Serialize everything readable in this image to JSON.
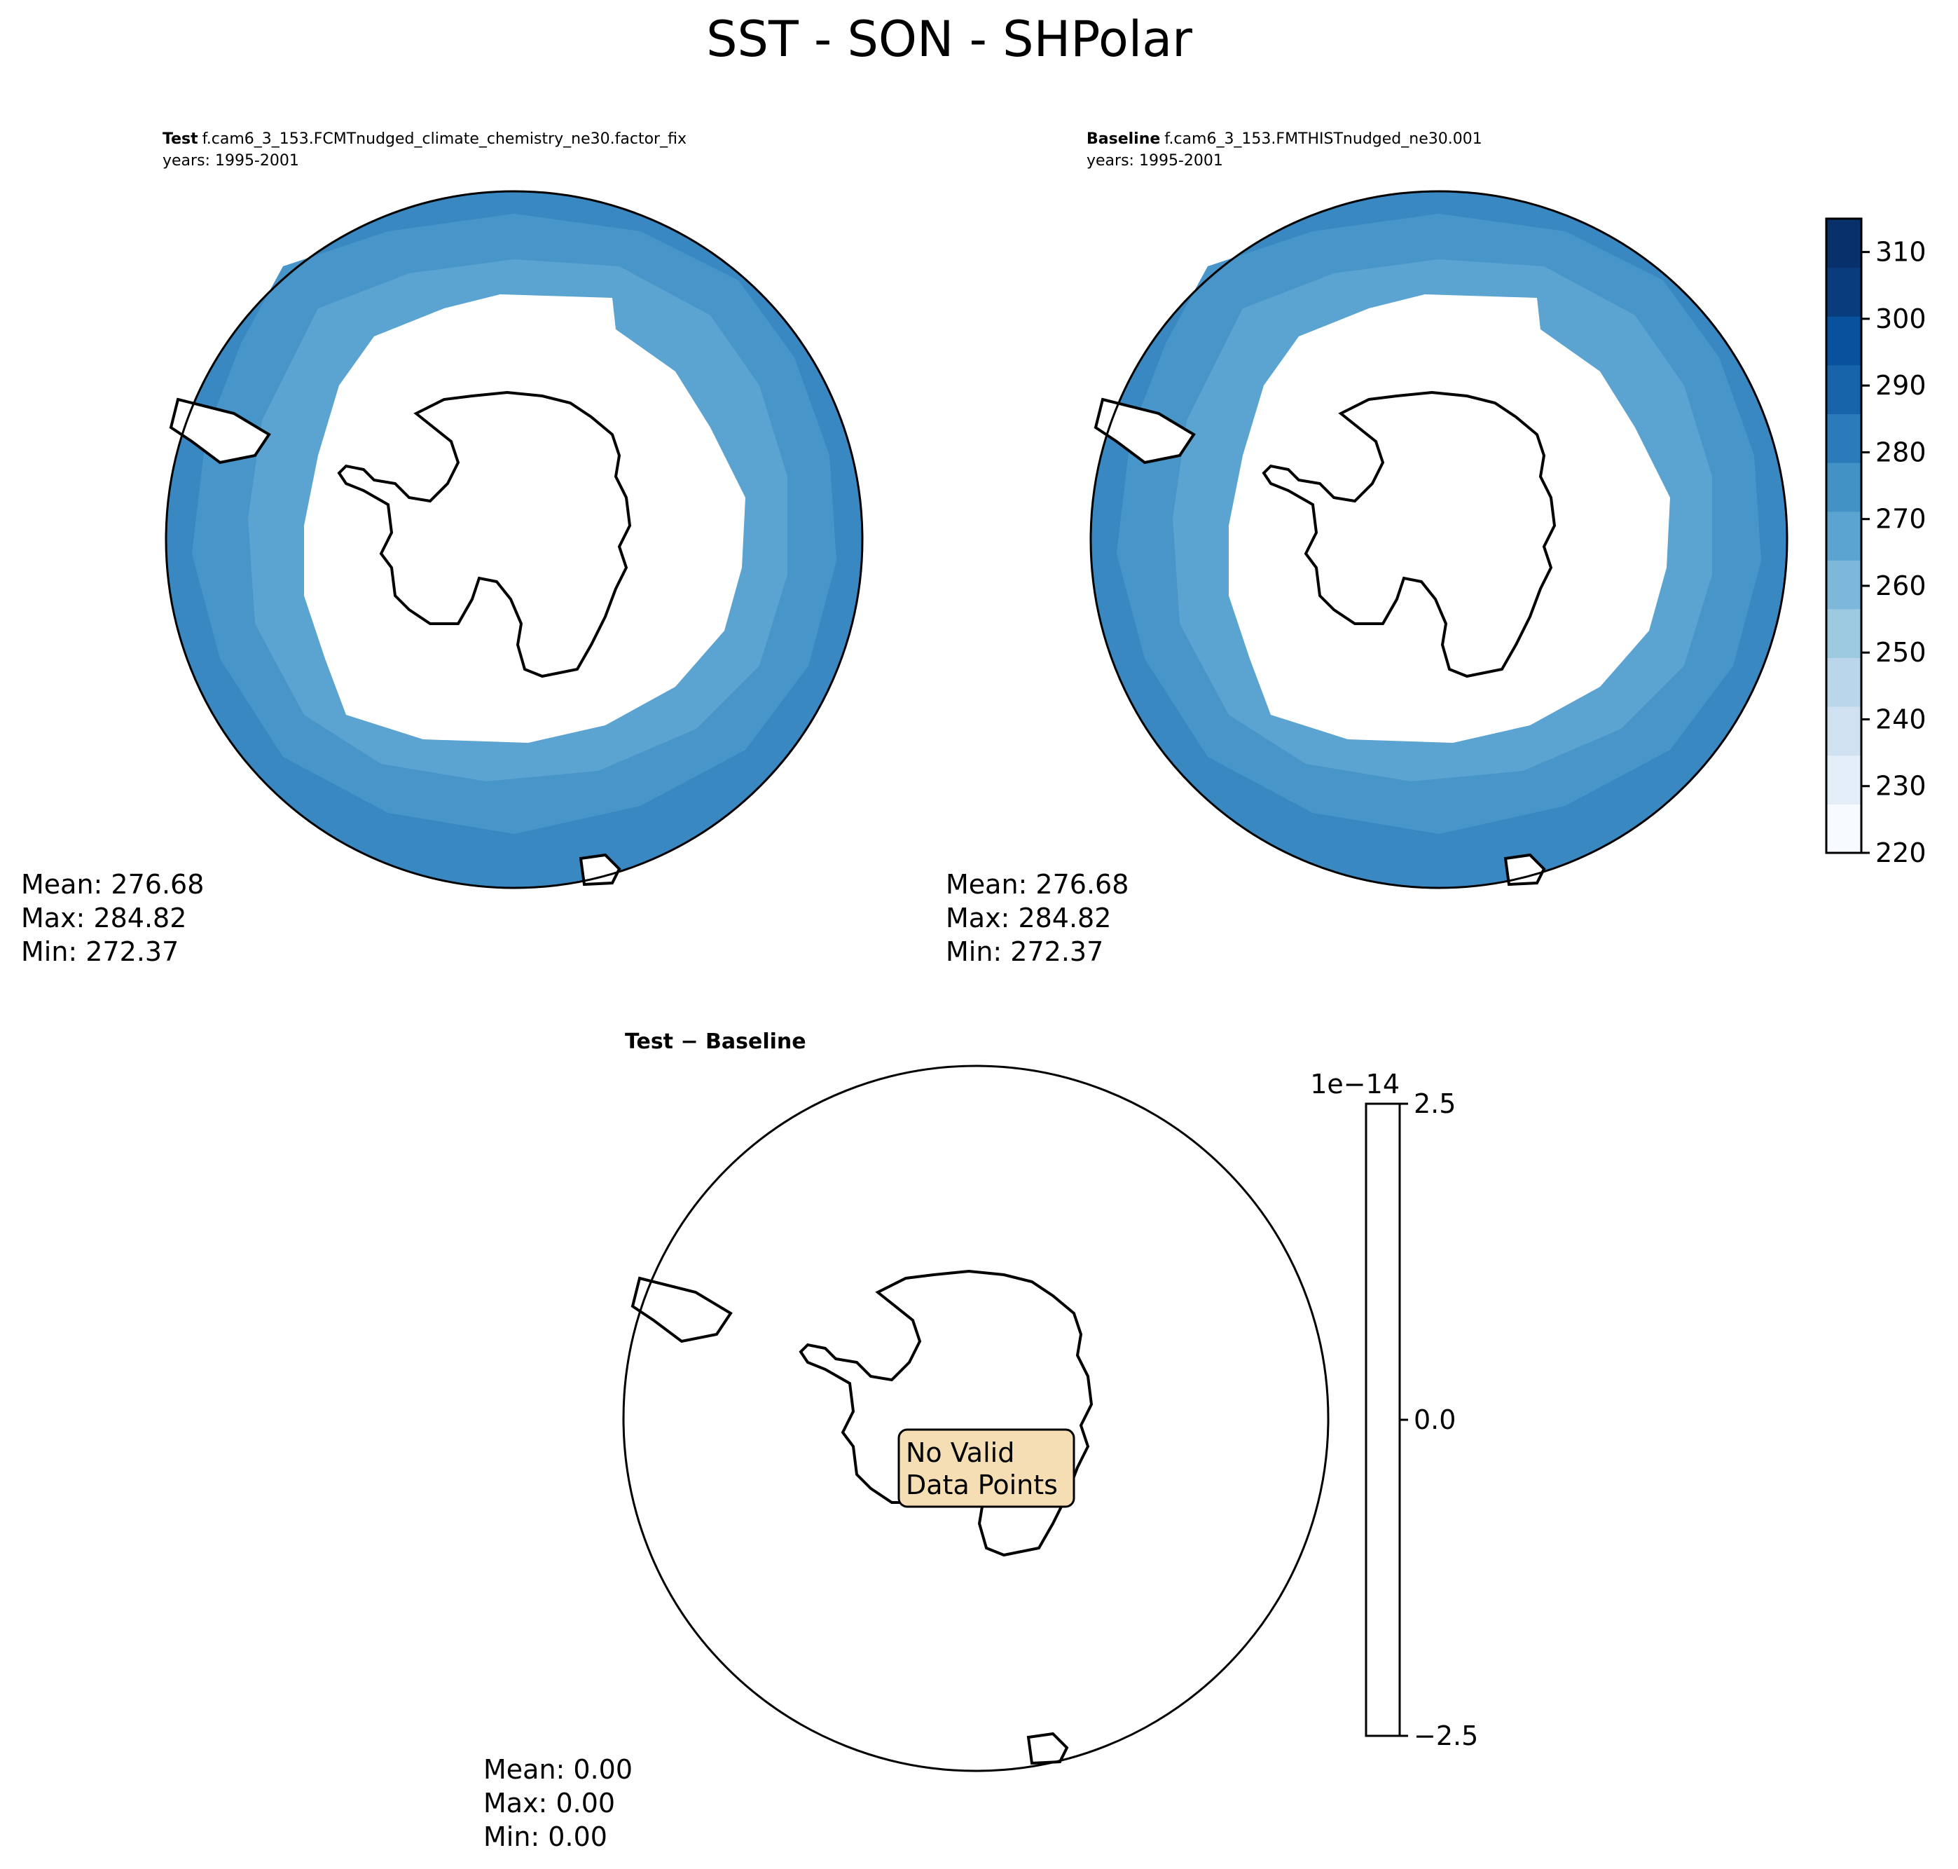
{
  "figure": {
    "title": "SST - SON - SHPolar"
  },
  "panels": {
    "test": {
      "label": "Test",
      "case": "f.cam6_3_153.FCMTnudged_climate_chemistry_ne30.factor_fix",
      "years": "years: 1995-2001",
      "stats": {
        "mean": "Mean: 276.68",
        "max": "Max: 284.82",
        "min": "Min: 272.37"
      }
    },
    "baseline": {
      "label": "Baseline",
      "case": "f.cam6_3_153.FMTHISTnudged_ne30.001",
      "years": "years: 1995-2001",
      "stats": {
        "mean": "Mean: 276.68",
        "max": "Max: 284.82",
        "min": "Min: 272.37"
      }
    },
    "diff": {
      "title": "Test − Baseline",
      "message_line1": "No Valid",
      "message_line2": "Data Points",
      "stats": {
        "mean": "Mean:  0.00",
        "max": "Max:  0.00",
        "min": "Min:  0.00"
      }
    }
  },
  "colorbar_main": {
    "ticks": [
      "220",
      "230",
      "240",
      "250",
      "260",
      "270",
      "280",
      "290",
      "300",
      "310"
    ],
    "colors": [
      "#f7fbff",
      "#e3eef9",
      "#d0e1f2",
      "#bad6eb",
      "#9ecae1",
      "#7db8da",
      "#5ba3d0",
      "#4292c6",
      "#2b7bba",
      "#1764ab",
      "#08519c",
      "#083c7d",
      "#08306b"
    ]
  },
  "colorbar_diff": {
    "ticks": [
      "2.5",
      "0.0",
      "−2.5"
    ],
    "scale": "1e−14"
  },
  "map_colors": {
    "outer_band": "#3a88c2",
    "middle_band": "#4896c9",
    "inner_band": "#5ba3d0",
    "land_outline": "#000000",
    "message_box": "#f5deb3"
  }
}
